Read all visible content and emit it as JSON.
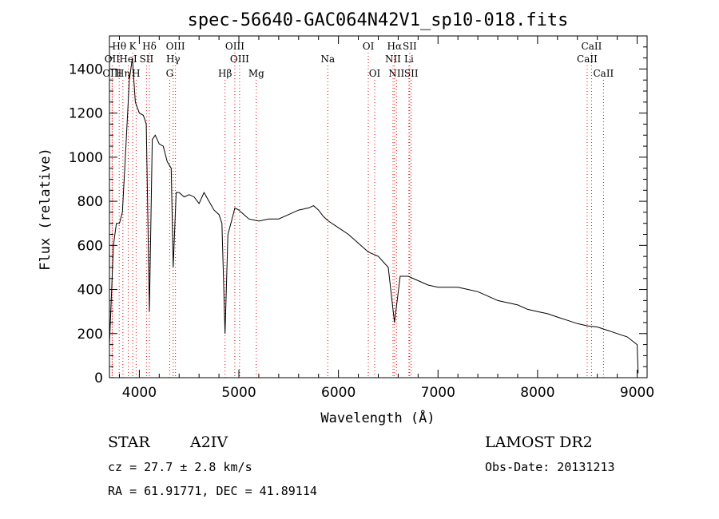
{
  "chart_data": {
    "type": "line",
    "title": "spec-56640-GAC064N42V1_sp10-018.fits",
    "xlabel": "Wavelength (Å)",
    "ylabel": "Flux (relative)",
    "xlim": [
      3700,
      9100
    ],
    "ylim": [
      0,
      1550
    ],
    "x_ticks": [
      4000,
      5000,
      6000,
      7000,
      8000,
      9000
    ],
    "y_ticks": [
      0,
      200,
      400,
      600,
      800,
      1000,
      1200,
      1400
    ],
    "grid": false,
    "line_color": "#000000",
    "marker_color": "#ff0000",
    "series_points": [
      [
        3700,
        150
      ],
      [
        3740,
        600
      ],
      [
        3770,
        700
      ],
      [
        3800,
        700
      ],
      [
        3830,
        750
      ],
      [
        3860,
        1000
      ],
      [
        3900,
        1350
      ],
      [
        3930,
        1450
      ],
      [
        3960,
        1250
      ],
      [
        4000,
        1200
      ],
      [
        4040,
        1190
      ],
      [
        4070,
        1150
      ],
      [
        4101,
        300
      ],
      [
        4130,
        1080
      ],
      [
        4160,
        1100
      ],
      [
        4200,
        1060
      ],
      [
        4240,
        1050
      ],
      [
        4280,
        980
      ],
      [
        4320,
        950
      ],
      [
        4340,
        500
      ],
      [
        4370,
        840
      ],
      [
        4400,
        840
      ],
      [
        4450,
        820
      ],
      [
        4500,
        830
      ],
      [
        4550,
        820
      ],
      [
        4600,
        790
      ],
      [
        4650,
        840
      ],
      [
        4700,
        800
      ],
      [
        4750,
        760
      ],
      [
        4800,
        740
      ],
      [
        4830,
        700
      ],
      [
        4861,
        200
      ],
      [
        4890,
        650
      ],
      [
        4920,
        700
      ],
      [
        4960,
        770
      ],
      [
        5000,
        760
      ],
      [
        5050,
        740
      ],
      [
        5100,
        720
      ],
      [
        5200,
        710
      ],
      [
        5300,
        720
      ],
      [
        5400,
        720
      ],
      [
        5500,
        740
      ],
      [
        5600,
        760
      ],
      [
        5700,
        770
      ],
      [
        5750,
        780
      ],
      [
        5800,
        760
      ],
      [
        5850,
        730
      ],
      [
        5900,
        710
      ],
      [
        6000,
        680
      ],
      [
        6100,
        650
      ],
      [
        6200,
        610
      ],
      [
        6300,
        570
      ],
      [
        6400,
        550
      ],
      [
        6500,
        500
      ],
      [
        6563,
        250
      ],
      [
        6620,
        460
      ],
      [
        6700,
        460
      ],
      [
        6800,
        440
      ],
      [
        6900,
        420
      ],
      [
        7000,
        410
      ],
      [
        7100,
        410
      ],
      [
        7200,
        410
      ],
      [
        7300,
        400
      ],
      [
        7400,
        390
      ],
      [
        7500,
        370
      ],
      [
        7600,
        350
      ],
      [
        7700,
        340
      ],
      [
        7800,
        330
      ],
      [
        7900,
        310
      ],
      [
        8000,
        300
      ],
      [
        8100,
        290
      ],
      [
        8200,
        275
      ],
      [
        8300,
        260
      ],
      [
        8400,
        245
      ],
      [
        8500,
        235
      ],
      [
        8600,
        230
      ],
      [
        8700,
        215
      ],
      [
        8800,
        200
      ],
      [
        8900,
        185
      ],
      [
        9000,
        150
      ],
      [
        9010,
        20
      ]
    ],
    "absorption_lines": [
      {
        "label": "Hθ",
        "wave": 3798,
        "row": 1
      },
      {
        "label": "K",
        "wave": 3934,
        "row": 1
      },
      {
        "label": "Hδ",
        "wave": 4101,
        "row": 1
      },
      {
        "label": "OIII",
        "wave": 4363,
        "row": 1
      },
      {
        "label": "OIII",
        "wave": 4959,
        "row": 1
      },
      {
        "label": "OI",
        "wave": 6300,
        "row": 1
      },
      {
        "label": "Hα",
        "wave": 6563,
        "row": 1
      },
      {
        "label": "SII",
        "wave": 6716,
        "row": 1
      },
      {
        "label": "CaII",
        "wave": 8542,
        "row": 1
      },
      {
        "label": "OII",
        "wave": 3727,
        "row": 2
      },
      {
        "label": "HeI",
        "wave": 3889,
        "row": 2
      },
      {
        "label": "SII",
        "wave": 4072,
        "row": 2
      },
      {
        "label": "Hγ",
        "wave": 4340,
        "row": 2
      },
      {
        "label": "OIII",
        "wave": 5007,
        "row": 2
      },
      {
        "label": "Na",
        "wave": 5893,
        "row": 2
      },
      {
        "label": "NII",
        "wave": 6548,
        "row": 2
      },
      {
        "label": "Li",
        "wave": 6708,
        "row": 2
      },
      {
        "label": "CaII",
        "wave": 8498,
        "row": 2
      },
      {
        "label": "OIII",
        "wave": 3727,
        "row": 3
      },
      {
        "label": "Hη",
        "wave": 3835,
        "row": 3
      },
      {
        "label": "H",
        "wave": 3968,
        "row": 3
      },
      {
        "label": "G",
        "wave": 4305,
        "row": 3
      },
      {
        "label": "Hβ",
        "wave": 4861,
        "row": 3
      },
      {
        "label": "Mg",
        "wave": 5175,
        "row": 3
      },
      {
        "label": "OI",
        "wave": 6364,
        "row": 3
      },
      {
        "label": "NII",
        "wave": 6583,
        "row": 3
      },
      {
        "label": "SII",
        "wave": 6731,
        "row": 3
      },
      {
        "label": "CaII",
        "wave": 8662,
        "row": 3
      }
    ]
  },
  "info": {
    "object_class": "STAR",
    "subclass": "A2IV",
    "survey": "LAMOST DR2",
    "cz": "cz = 27.7 ± 2.8 km/s",
    "obs_date": "Obs-Date: 20131213",
    "coords": "RA =  61.91771, DEC =  41.89114"
  }
}
